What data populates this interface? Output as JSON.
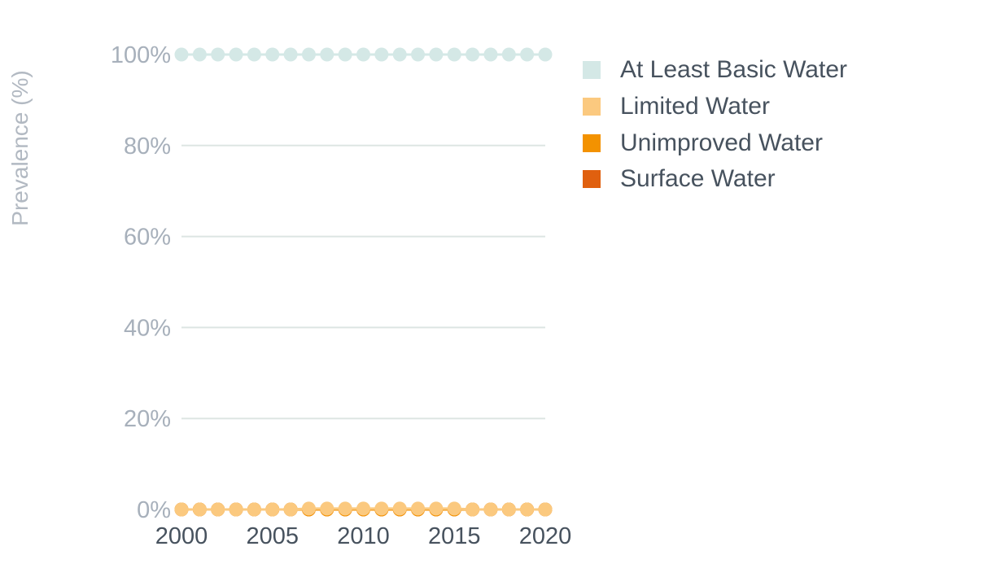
{
  "chart_data": {
    "type": "line",
    "ylabel": "Prevalence (%)",
    "ylim": [
      0,
      100
    ],
    "yticks": [
      "0%",
      "20%",
      "40%",
      "60%",
      "80%",
      "100%"
    ],
    "ytick_values": [
      0,
      20,
      40,
      60,
      80,
      100
    ],
    "xlim": [
      2000,
      2020
    ],
    "xticks": [
      "2000",
      "2005",
      "2010",
      "2015",
      "2020"
    ],
    "xtick_values": [
      2000,
      2005,
      2010,
      2015,
      2020
    ],
    "x": [
      2000,
      2001,
      2002,
      2003,
      2004,
      2005,
      2006,
      2007,
      2008,
      2009,
      2010,
      2011,
      2012,
      2013,
      2014,
      2015,
      2016,
      2017,
      2018,
      2019,
      2020
    ],
    "grid": true,
    "legend_position": "right",
    "series": [
      {
        "name": "At Least Basic Water",
        "color": "#d4e8e6",
        "values": [
          100,
          100,
          100,
          100,
          100,
          100,
          100,
          99.8,
          99.8,
          99.8,
          99.8,
          99.8,
          99.8,
          99.8,
          99.8,
          99.8,
          100,
          100,
          100,
          100,
          100
        ]
      },
      {
        "name": "Limited Water",
        "color": "#fbc97f",
        "values": [
          0,
          0,
          0,
          0,
          0,
          0,
          0,
          0.2,
          0.2,
          0.2,
          0.2,
          0.2,
          0.2,
          0.2,
          0.2,
          0.2,
          0,
          0,
          0,
          0,
          0
        ]
      },
      {
        "name": "Unimproved Water",
        "color": "#f39200",
        "values": [
          0,
          0,
          0,
          0,
          0,
          0,
          0,
          0,
          0,
          0,
          0,
          0,
          0,
          0,
          0,
          0,
          0,
          0,
          0,
          0,
          0
        ]
      },
      {
        "name": "Surface Water",
        "color": "#e0600f",
        "values": [
          0,
          0,
          0,
          0,
          0,
          0,
          0,
          0,
          0,
          0,
          0,
          0,
          0,
          0,
          0,
          0,
          0,
          0,
          0,
          0,
          0
        ]
      }
    ]
  }
}
